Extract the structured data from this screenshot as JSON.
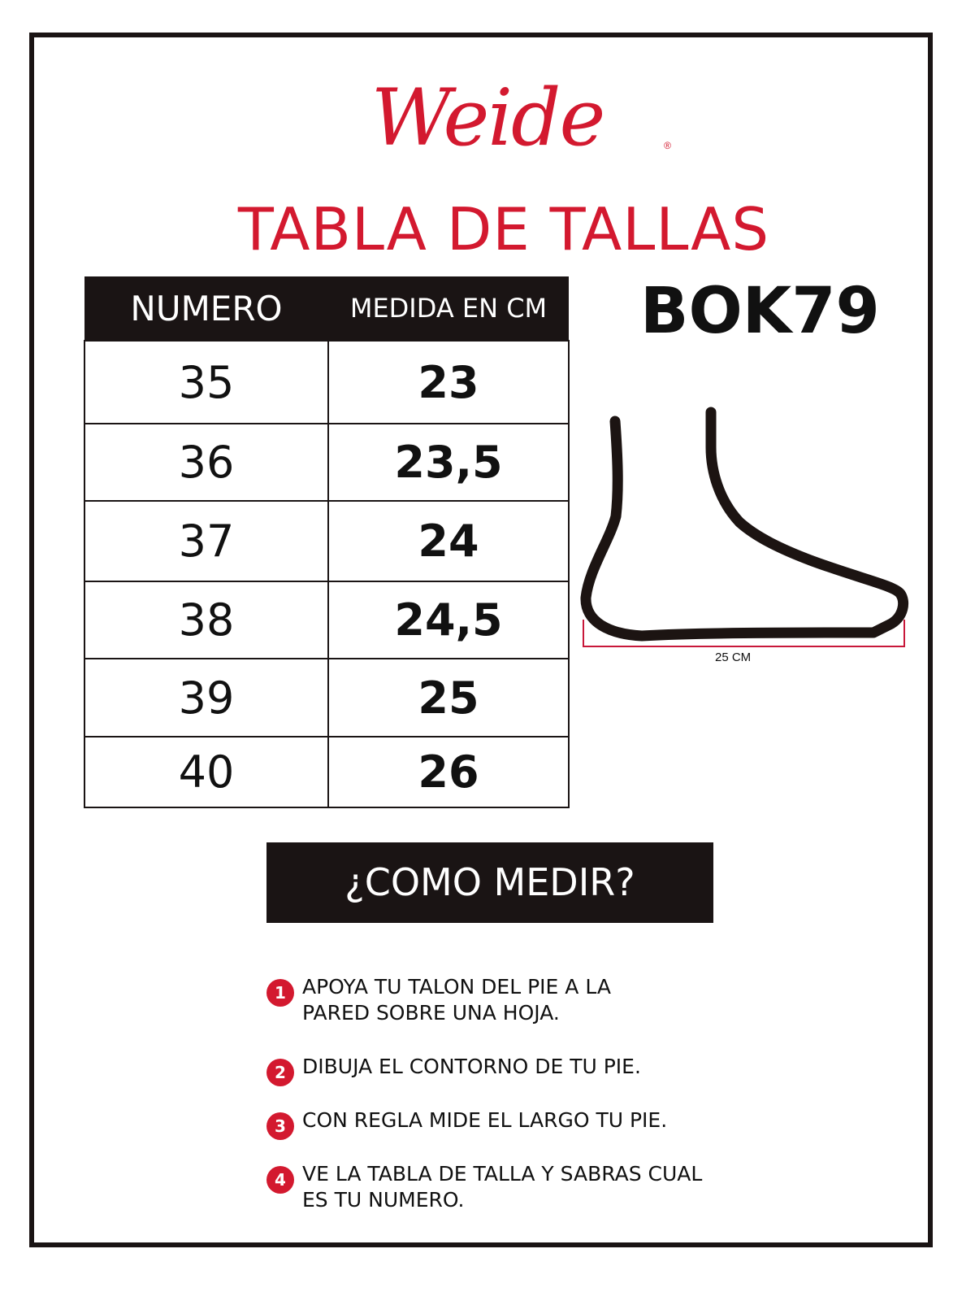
{
  "brand": {
    "logo": "Weide",
    "registered": "®",
    "color": "#d3192f"
  },
  "title": "TABLA DE TALLAS",
  "model": "BOK79",
  "table": {
    "headers": [
      "NUMERO",
      "MEDIDA EN CM"
    ],
    "rows": [
      {
        "size": "35",
        "cm": "23"
      },
      {
        "size": "36",
        "cm": "23,5"
      },
      {
        "size": "37",
        "cm": "24"
      },
      {
        "size": "38",
        "cm": "24,5"
      },
      {
        "size": "39",
        "cm": "25"
      },
      {
        "size": "40",
        "cm": "26"
      }
    ]
  },
  "diagram": {
    "measure_label": "25 CM",
    "icon": "foot-outline-icon"
  },
  "how_to": {
    "title": "¿COMO MEDIR?",
    "steps": [
      {
        "n": "1",
        "text": "APOYA TU TALON DEL PIE A LA PARED SOBRE UNA HOJA."
      },
      {
        "n": "2",
        "text": "DIBUJA EL CONTORNO DE TU PIE."
      },
      {
        "n": "3",
        "text": "CON REGLA MIDE EL LARGO TU PIE."
      },
      {
        "n": "4",
        "text": "VE LA TABLA DE TALLA Y SABRAS CUAL ES TU NUMERO."
      }
    ]
  }
}
